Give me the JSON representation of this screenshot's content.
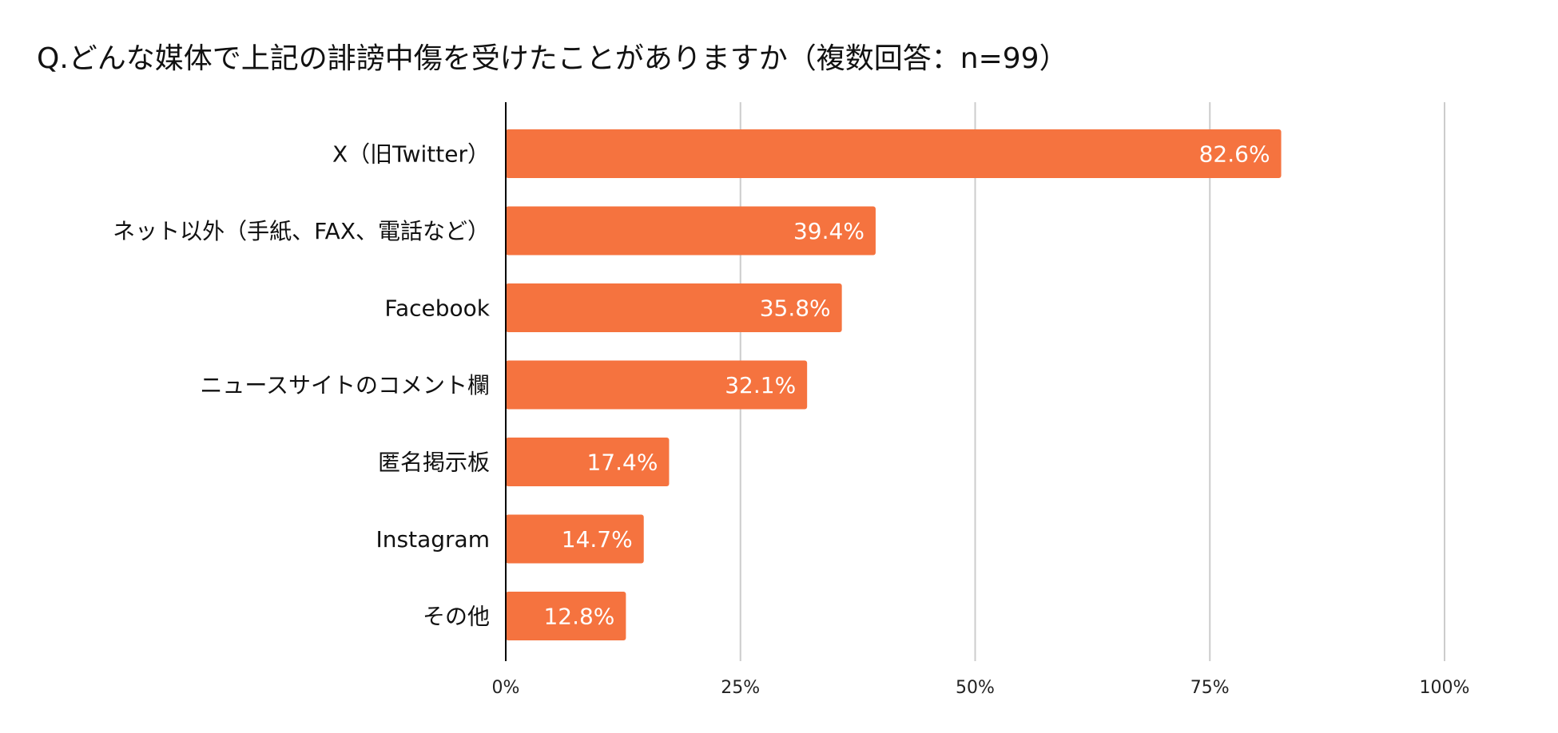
{
  "chart_data": {
    "type": "bar",
    "orientation": "horizontal",
    "title": "Q.どんな媒体で上記の誹謗中傷を受けたことがありますか（複数回答：n=99）",
    "categories": [
      "X（旧Twitter）",
      "ネット以外（手紙、FAX、電話など）",
      "Facebook",
      "ニュースサイトのコメント欄",
      "匿名掲示板",
      "Instagram",
      "その他"
    ],
    "values": [
      82.6,
      39.4,
      35.8,
      32.1,
      17.4,
      14.7,
      12.8
    ],
    "value_labels": [
      "82.6%",
      "39.4%",
      "35.8%",
      "32.1%",
      "17.4%",
      "14.7%",
      "12.8%"
    ],
    "xlim": [
      0,
      100
    ],
    "ticks": [
      0,
      25,
      50,
      75,
      100
    ],
    "tick_labels": [
      "0%",
      "25%",
      "50%",
      "75%",
      "100%"
    ],
    "grid": true,
    "bar_color": "#f5733f",
    "grid_color": "#cccccc",
    "axis_color": "#000000"
  }
}
